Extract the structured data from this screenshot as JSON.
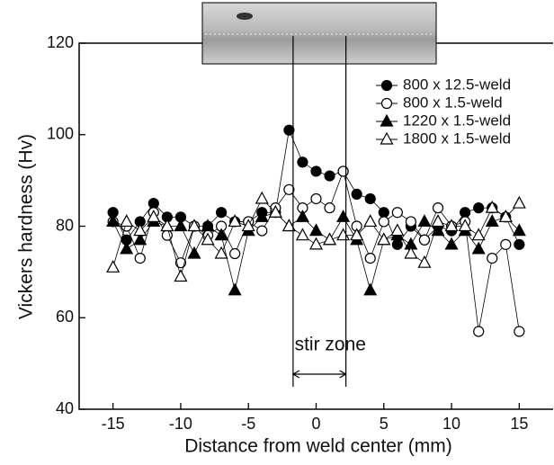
{
  "chart_data": {
    "type": "line",
    "x_label": "Distance from weld center (mm)",
    "y_label": "Vickers hardness (Hv)",
    "x": [
      -15,
      -14,
      -13,
      -12,
      -11,
      -10,
      -9,
      -8,
      -7,
      -6,
      -5,
      -4,
      -3,
      -2,
      -1,
      0,
      1,
      2,
      3,
      4,
      5,
      6,
      7,
      8,
      9,
      10,
      11,
      12,
      13,
      14,
      15
    ],
    "series": [
      {
        "name": "800 x 12.5-weld",
        "color": "#000000",
        "marker": "circle",
        "filled": true,
        "values": [
          83,
          77,
          81,
          85,
          82,
          82,
          80,
          80,
          83,
          81,
          81,
          83,
          83,
          101,
          94,
          92,
          91,
          92,
          87,
          86,
          83,
          76,
          80,
          77,
          80,
          79,
          83,
          84,
          84,
          82,
          76
        ]
      },
      {
        "name": "800 x 1.5-weld",
        "color": "#000000",
        "marker": "circle",
        "filled": false,
        "values": [
          81,
          80,
          73,
          83,
          78,
          72,
          80,
          78,
          80,
          74,
          81,
          79,
          84,
          88,
          84,
          86,
          84,
          92,
          80,
          73,
          81,
          83,
          81,
          77,
          84,
          80,
          81,
          57,
          73,
          76,
          57
        ]
      },
      {
        "name": "1220 x 1.5-weld",
        "color": "#000000",
        "marker": "triangle",
        "filled": true,
        "values": [
          81,
          75,
          77,
          81,
          80,
          80,
          74,
          80,
          78,
          66,
          79,
          82,
          83,
          80,
          82,
          79,
          77,
          82,
          77,
          66,
          77,
          78,
          76,
          81,
          79,
          76,
          79,
          75,
          81,
          82,
          79
        ]
      },
      {
        "name": "1800 x 1.5-weld",
        "color": "#000000",
        "marker": "triangle",
        "filled": false,
        "values": [
          71,
          81,
          79,
          82,
          80,
          69,
          80,
          77,
          74,
          81,
          80,
          86,
          83,
          80,
          78,
          76,
          77,
          78,
          78,
          81,
          77,
          79,
          74,
          72,
          81,
          80,
          80,
          78,
          84,
          82,
          85
        ]
      }
    ],
    "annotations": [
      {
        "text": "stir zone",
        "x": [
          -1.7,
          2.2
        ]
      }
    ],
    "xlim": [
      -17.5,
      17.5
    ],
    "ylim": [
      40,
      120
    ],
    "xticks": [
      -15,
      -10,
      -5,
      0,
      5,
      10,
      15
    ],
    "yticks": [
      40,
      60,
      80,
      100,
      120
    ],
    "legend": "upper right"
  }
}
